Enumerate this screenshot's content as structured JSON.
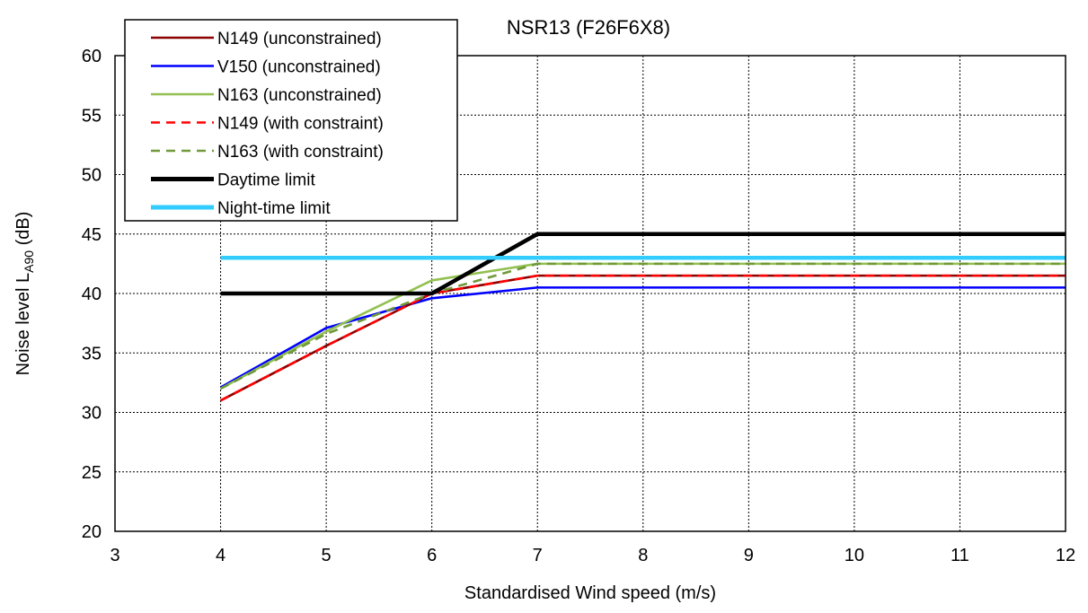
{
  "chart_data": {
    "type": "line",
    "title": "NSR13 (F26F6X8)",
    "xlabel": "Standardised Wind speed (m/s)",
    "ylabel": {
      "prefix": "Noise level L",
      "sub": "A90",
      "suffix": " (dB)"
    },
    "xlim": [
      3,
      12
    ],
    "ylim": [
      20,
      60
    ],
    "xticks": [
      3,
      4,
      5,
      6,
      7,
      8,
      9,
      10,
      11,
      12
    ],
    "yticks": [
      20,
      25,
      30,
      35,
      40,
      45,
      50,
      55,
      60
    ],
    "grid": true,
    "legend_position": "top-left",
    "x": [
      4,
      5,
      6,
      7,
      8,
      9,
      10,
      11,
      12
    ],
    "series": [
      {
        "name": "N149 (unconstrained)",
        "color": "#8B0000",
        "dash": "solid",
        "values": [
          31.0,
          35.6,
          40.0,
          41.5,
          41.5,
          41.5,
          41.5,
          41.5,
          41.5
        ]
      },
      {
        "name": "V150 (unconstrained)",
        "color": "#0000FF",
        "dash": "solid",
        "values": [
          32.1,
          37.1,
          39.6,
          40.5,
          40.5,
          40.5,
          40.5,
          40.5,
          40.5
        ]
      },
      {
        "name": "N163 (unconstrained)",
        "color": "#92C050",
        "dash": "solid",
        "values": [
          32.0,
          36.8,
          41.1,
          42.5,
          42.5,
          42.5,
          42.5,
          42.5,
          42.5
        ]
      },
      {
        "name": "N149 (with constraint)",
        "color": "#FF0000",
        "dash": "dashed",
        "values": [
          31.0,
          35.6,
          40.0,
          41.5,
          41.5,
          41.5,
          41.5,
          41.5,
          41.5
        ]
      },
      {
        "name": "N163 (with constraint)",
        "color": "#70993A",
        "dash": "dashed",
        "values": [
          32.0,
          36.6,
          40.0,
          42.5,
          42.5,
          42.5,
          42.5,
          42.5,
          42.5
        ]
      },
      {
        "name": "Daytime limit",
        "color": "#000000",
        "dash": "solid",
        "thick": true,
        "values": [
          40,
          40,
          40,
          45,
          45,
          45,
          45,
          45,
          45
        ]
      },
      {
        "name": "Night-time limit",
        "color": "#33CCFF",
        "dash": "solid",
        "thick": true,
        "values": [
          43,
          43,
          43,
          43,
          43,
          43,
          43,
          43,
          43
        ]
      }
    ]
  }
}
